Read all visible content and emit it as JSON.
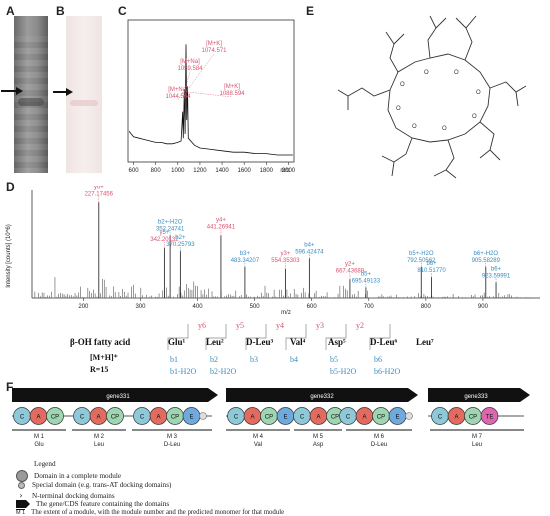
{
  "panels": {
    "A": "A",
    "B": "B",
    "C": "C",
    "D": "D",
    "E": "E",
    "F": "F"
  },
  "panel_c": {
    "peaks": [
      {
        "label": "[M+K]",
        "value": "1074.571"
      },
      {
        "label": "[M+Na]",
        "value": "1059.584"
      },
      {
        "label": "[M+Na]",
        "value": "1044.564"
      },
      {
        "label": "[M+K]",
        "value": "1088.594"
      }
    ],
    "x_ticks": [
      "600",
      "800",
      "1000",
      "1200",
      "1400",
      "1600",
      "1800",
      "2000"
    ],
    "x_unit": "m/z",
    "spectrum_profile": [
      [
        560,
        0.22
      ],
      [
        600,
        0.18
      ],
      [
        650,
        0.17
      ],
      [
        700,
        0.16
      ],
      [
        750,
        0.15
      ],
      [
        800,
        0.14
      ],
      [
        850,
        0.14
      ],
      [
        900,
        0.13
      ],
      [
        950,
        0.13
      ],
      [
        1000,
        0.14
      ],
      [
        1030,
        0.15
      ],
      [
        1044,
        0.36
      ],
      [
        1050,
        0.17
      ],
      [
        1059,
        0.52
      ],
      [
        1066,
        0.2
      ],
      [
        1074,
        0.84
      ],
      [
        1080,
        0.3
      ],
      [
        1088,
        0.54
      ],
      [
        1095,
        0.17
      ],
      [
        1150,
        0.12
      ],
      [
        1200,
        0.1
      ],
      [
        1300,
        0.09
      ],
      [
        1400,
        0.08
      ],
      [
        1500,
        0.07
      ],
      [
        1600,
        0.07
      ],
      [
        1700,
        0.06
      ],
      [
        1800,
        0.06
      ],
      [
        1900,
        0.05
      ],
      [
        2000,
        0.05
      ],
      [
        2040,
        0.05
      ]
    ]
  },
  "panel_d": {
    "y_label": "Intensity [counts] (10^6)",
    "x_label": "m/z",
    "x_ticks": [
      "200",
      "300",
      "400",
      "500",
      "600",
      "700",
      "800",
      "900"
    ],
    "y_ions": [
      {
        "label": "y6+",
        "value": "227.17456",
        "mz": 227,
        "h": 0.92
      },
      {
        "label": "y5+",
        "value": "342.20132",
        "mz": 342,
        "h": 0.48
      },
      {
        "label": "y4+",
        "value": "441.26941",
        "mz": 441,
        "h": 0.6
      },
      {
        "label": "y3+",
        "value": "554.35303",
        "mz": 554,
        "h": 0.28
      },
      {
        "label": "y2+",
        "value": "667.43689",
        "mz": 667,
        "h": 0.18
      }
    ],
    "b_ions": [
      {
        "label": "b2+-H2O",
        "value": "352.24741",
        "mz": 352,
        "h": 0.6
      },
      {
        "label": "b2+",
        "value": "370.25793",
        "mz": 370,
        "h": 0.45
      },
      {
        "label": "b3+",
        "value": "483.34207",
        "mz": 483,
        "h": 0.3
      },
      {
        "label": "b4+",
        "value": "596.42474",
        "mz": 596,
        "h": 0.38
      },
      {
        "label": "b5+",
        "value": "695.49133",
        "mz": 695,
        "h": 0.1
      },
      {
        "label": "b5+-H2O",
        "value": "792.50562",
        "mz": 792,
        "h": 0.3
      },
      {
        "label": "b6+",
        "value": "810.51770",
        "mz": 810,
        "h": 0.2
      },
      {
        "label": "b6+-H2O",
        "value": "905.58289",
        "mz": 905,
        "h": 0.3
      },
      {
        "label": "b6+",
        "value": "923.59991",
        "mz": 923,
        "h": 0.15
      }
    ]
  },
  "sequence": {
    "residues": [
      "β-OH fatty acid",
      "Glu¹",
      "Leu²",
      "D-Leu³",
      "Val⁴",
      "Asp⁵",
      "D-Leu⁶",
      "Leu⁷"
    ],
    "y_labels": [
      "y6",
      "y5",
      "y4",
      "y3",
      "y2"
    ],
    "b_labels": [
      "b1",
      "b2",
      "b3",
      "b4",
      "b5",
      "b6"
    ],
    "b_water_labels": [
      "b1-H2O",
      "b2-H2O",
      "b5-H2O",
      "b6-H2O"
    ],
    "mh": "[M+H]⁺",
    "r": "R=15"
  },
  "panel_f": {
    "genes": [
      "gene331",
      "gene332",
      "gene333"
    ],
    "modules": [
      {
        "name": "M 1",
        "monomer": "Glu"
      },
      {
        "name": "M 2",
        "monomer": "Leu"
      },
      {
        "name": "M 3",
        "monomer": "D-Leu"
      },
      {
        "name": "M 4",
        "monomer": "Val"
      },
      {
        "name": "M 5",
        "monomer": "Asp"
      },
      {
        "name": "M 6",
        "monomer": "D-Leu"
      },
      {
        "name": "M 7",
        "monomer": "Leu"
      }
    ],
    "domains": {
      "C": "C",
      "A": "A",
      "CP": "CP",
      "E": "E",
      "TE": "TE"
    },
    "colors": {
      "C": "#8ec9d9",
      "A": "#e36a5e",
      "CP": "#9fd6b2",
      "E": "#6eaadd",
      "TE": "#de66b0"
    },
    "legend": {
      "title": "Legend",
      "items": [
        "Domain in a complete module",
        "Special domain (e.g. trans-AT docking domains)",
        "N-terminal docking domains",
        "The gene/CDS feature containing the domains",
        "The extent of a module, with the module number and the predicted monomer for that module"
      ],
      "module_icon": "M 1"
    }
  }
}
